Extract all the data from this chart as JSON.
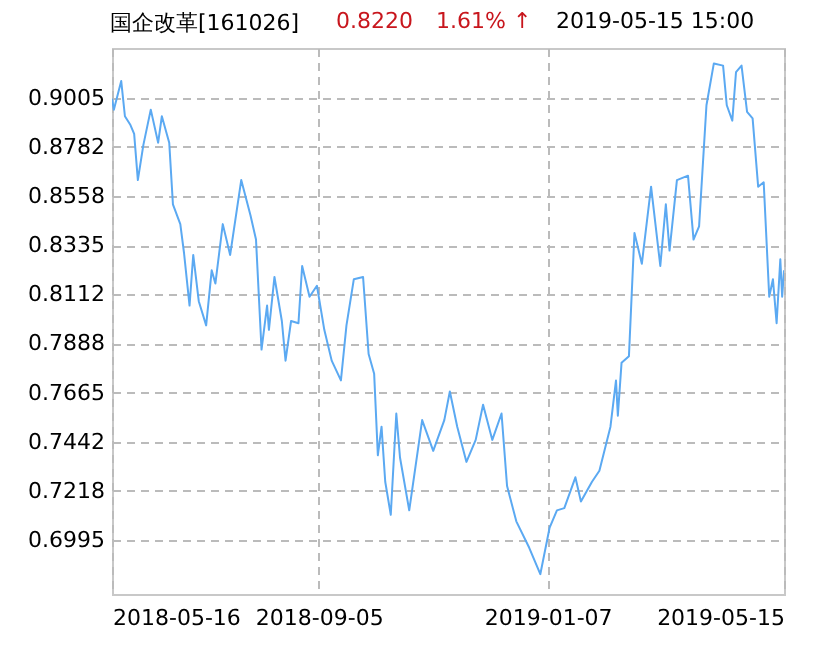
{
  "chart_data": {
    "type": "line",
    "title": "国企改革[161026]",
    "annotations": [
      "0.8220",
      "1.61% ↑",
      "2019-05-15 15:00"
    ],
    "x": [
      "2018-05-16",
      "2018-05-17",
      "2018-05-21",
      "2018-05-23",
      "2018-05-26",
      "2018-05-28",
      "2018-05-30",
      "2018-06-02",
      "2018-06-06",
      "2018-06-10",
      "2018-06-12",
      "2018-06-16",
      "2018-06-18",
      "2018-06-22",
      "2018-06-24",
      "2018-06-27",
      "2018-06-29",
      "2018-07-02",
      "2018-07-06",
      "2018-07-09",
      "2018-07-11",
      "2018-07-15",
      "2018-07-19",
      "2018-07-25",
      "2018-07-30",
      "2018-08-02",
      "2018-08-05",
      "2018-08-08",
      "2018-08-09",
      "2018-08-12",
      "2018-08-16",
      "2018-08-18",
      "2018-08-21",
      "2018-08-25",
      "2018-08-27",
      "2018-08-31",
      "2018-09-04",
      "2018-09-08",
      "2018-09-12",
      "2018-09-17",
      "2018-09-20",
      "2018-09-24",
      "2018-09-29",
      "2018-10-02",
      "2018-10-05",
      "2018-10-07",
      "2018-10-09",
      "2018-10-11",
      "2018-10-14",
      "2018-10-17",
      "2018-10-19",
      "2018-10-24",
      "2018-10-31",
      "2018-11-06",
      "2018-11-12",
      "2018-11-15",
      "2018-11-19",
      "2018-11-24",
      "2018-11-29",
      "2018-12-03",
      "2018-12-08",
      "2018-12-13",
      "2018-12-16",
      "2018-12-21",
      "2018-12-28",
      "2019-01-03",
      "2019-01-08",
      "2019-01-12",
      "2019-01-16",
      "2019-01-22",
      "2019-01-25",
      "2019-01-31",
      "2019-02-04",
      "2019-02-10",
      "2019-02-13",
      "2019-02-14",
      "2019-02-16",
      "2019-02-20",
      "2019-02-23",
      "2019-02-27",
      "2019-03-04",
      "2019-03-09",
      "2019-03-12",
      "2019-03-14",
      "2019-03-18",
      "2019-03-24",
      "2019-03-27",
      "2019-03-30",
      "2019-04-03",
      "2019-04-07",
      "2019-04-12",
      "2019-04-14",
      "2019-04-17",
      "2019-04-19",
      "2019-04-22",
      "2019-04-25",
      "2019-04-28",
      "2019-05-01",
      "2019-05-04",
      "2019-05-07",
      "2019-05-09",
      "2019-05-11",
      "2019-05-13",
      "2019-05-14",
      "2019-05-15"
    ],
    "series": [
      {
        "color": "#5ba9f2",
        "values": [
          0.9,
          0.895,
          0.908,
          0.892,
          0.888,
          0.884,
          0.863,
          0.879,
          0.895,
          0.88,
          0.892,
          0.88,
          0.852,
          0.843,
          0.83,
          0.806,
          0.829,
          0.808,
          0.797,
          0.822,
          0.816,
          0.843,
          0.829,
          0.863,
          0.847,
          0.836,
          0.786,
          0.806,
          0.795,
          0.819,
          0.799,
          0.781,
          0.799,
          0.798,
          0.824,
          0.81,
          0.815,
          0.795,
          0.781,
          0.772,
          0.797,
          0.818,
          0.819,
          0.784,
          0.775,
          0.738,
          0.751,
          0.726,
          0.711,
          0.757,
          0.737,
          0.713,
          0.754,
          0.74,
          0.754,
          0.767,
          0.751,
          0.735,
          0.745,
          0.761,
          0.745,
          0.757,
          0.724,
          0.708,
          0.696,
          0.684,
          0.705,
          0.713,
          0.714,
          0.728,
          0.717,
          0.726,
          0.731,
          0.751,
          0.772,
          0.756,
          0.78,
          0.783,
          0.839,
          0.825,
          0.86,
          0.824,
          0.852,
          0.831,
          0.863,
          0.865,
          0.836,
          0.842,
          0.897,
          0.916,
          0.915,
          0.897,
          0.89,
          0.912,
          0.915,
          0.894,
          0.891,
          0.86,
          0.862,
          0.81,
          0.818,
          0.798,
          0.827,
          0.81,
          0.822
        ]
      }
    ],
    "xlim": [
      "2018-05-16",
      "2019-05-15"
    ],
    "xticks": [
      "2018-05-16",
      "2018-09-05",
      "2019-01-07",
      "2019-05-15"
    ],
    "ylim": [
      0.675,
      0.923
    ],
    "yticks": [
      0.9005,
      0.8782,
      0.8558,
      0.8335,
      0.8112,
      0.7888,
      0.7665,
      0.7442,
      0.7218,
      0.6995
    ],
    "grid": true,
    "line_style": "solid",
    "marker": "none",
    "legend": false
  }
}
